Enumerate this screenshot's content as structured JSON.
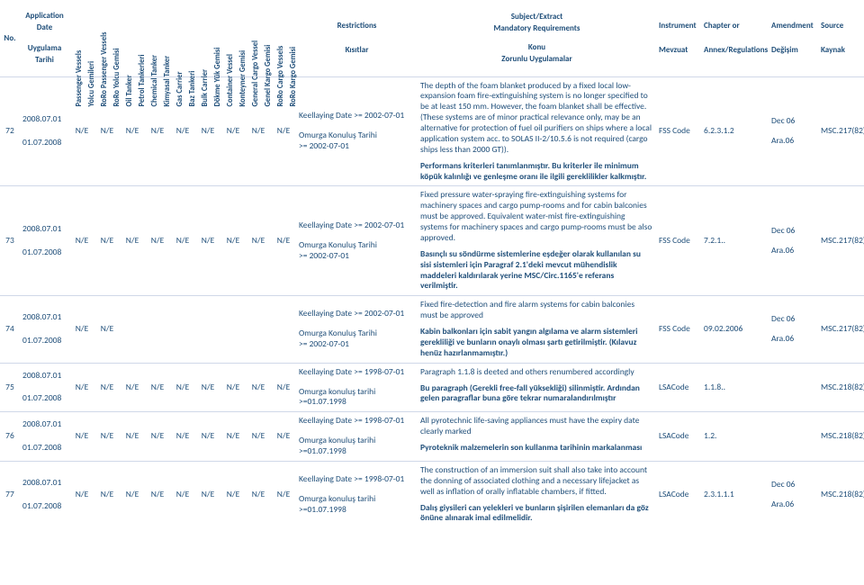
{
  "bg": "#ffffff",
  "txt": "#1f4e79",
  "rowline": "#d0d8e8",
  "hdr": {
    "no": "No.",
    "appdate": [
      "Application",
      "Date",
      "Uygulama",
      "Tarihi"
    ],
    "vessels": [
      "Passenger Vessels",
      "Yolcu Gemileri",
      "RoRo Passenger Vessels",
      "RoRo Yolcu Gemisi",
      "Oil Tanker",
      "Petrol Tankerleri",
      "Chemical Tanker",
      "Kimyasal Tanker",
      "Gas Carrier",
      "Baz Tankeri",
      "Bulk Carrier",
      "Dökme Yük Gemisi",
      "Container Vessel",
      "Konteyner Gemisi",
      "General Cargo Vessel",
      "Genel Kargo Gemisi",
      "RoRo Cargo Vessels",
      "RoRo Kargo Gemisi"
    ],
    "rest": [
      "Restrictions",
      "Kısıtlar"
    ],
    "subj": [
      "Subject/Extract",
      "Mandatory Requirements",
      "Konu",
      "Zorunlu Uygulamalar"
    ],
    "inst": [
      "Instrument",
      "Mevzuat"
    ],
    "chap": [
      "Chapter or",
      "Annex/Regulations"
    ],
    "amd": [
      "Amendment",
      "Değişim"
    ],
    "src": [
      "Source",
      "Kaynak"
    ]
  },
  "rows": [
    {
      "no": "72",
      "d1": "2008.07.01",
      "d2": "01.07.2008",
      "v": [
        "N/E",
        "N/E",
        "N/E",
        "N/E",
        "N/E",
        "N/E",
        "N/E",
        "N/E",
        "N/E"
      ],
      "r1": "Keellaying Date >= 2002-07-01",
      "r2": "Omurga Konuluş Tarihi\n>= 2002-07-01",
      "s1": "The depth of the foam blanket produced by a fixed local low-expansion foam fire-extinguishing system is no longer specified to be at least 150 mm. However, the foam blanket shall be effective. (These systems are of minor practical relevance only, may be an alternative for protection of fuel oil purifiers on ships where a local application system acc. to SOLAS II-2/10.5.6 is not required (cargo ships less than 2000 GT)).",
      "s2": "Performans kriterleri tanımlanmıştır. Bu kriterler ile minimum köpük kalınlığı ve genleşme oranı ile ilgili gereklilikler kalkmıştır.",
      "inst": "FSS Code",
      "chap": "6.2.3.1.2",
      "a1": "Dec 06",
      "a2": "Ara.06",
      "src": "MSC.217(82)"
    },
    {
      "no": "73",
      "d1": "2008.07.01",
      "d2": "01.07.2008",
      "v": [
        "N/E",
        "N/E",
        "N/E",
        "N/E",
        "N/E",
        "N/E",
        "N/E",
        "N/E",
        "N/E"
      ],
      "r1": "Keellaying Date >= 2002-07-01",
      "r2": "Omurga Konuluş Tarihi\n>= 2002-07-01",
      "s1": "Fixed pressure water-spraying fire-extinguishing systems for machinery spaces and cargo pump-rooms and for cabin balconies must be approved. Equivalent water-mist fire-extinguishing systems for machinery spaces and cargo pump-rooms must be also approved.",
      "s2": "Basınçlı su söndürme sistemlerine eşdeğer olarak kullanılan su sisi sistemleri için  Paragraf 2.1'deki mevcut mühendislik maddeleri kaldırılarak yerine MSC/Circ.1165'e referans verilmiştir.",
      "inst": "FSS Code",
      "chap": "7.2.1..",
      "a1": "Dec 06",
      "a2": "Ara.06",
      "src": "MSC.217(82)"
    },
    {
      "no": "74",
      "d1": "2008.07.01",
      "d2": "01.07.2008",
      "v": [
        "N/E",
        "N/E",
        "",
        "",
        "",
        "",
        "",
        "",
        ""
      ],
      "r1": "Keellaying Date >= 2002-07-01",
      "r2": "Omurga Konuluş Tarihi\n>= 2002-07-01",
      "s1": "Fixed fire-detection and fire alarm systems for cabin balconies must be approved",
      "s2": "Kabin balkonları için sabit yangın algılama ve alarm sistemleri gerekliliği ve bunların onaylı olması şartı getirilmiştir. (Kılavuz henüz hazırlanmamıştır.)",
      "inst": "FSS Code",
      "chap": "09.02.2006",
      "a1": "Dec 06",
      "a2": "Ara.06",
      "src": "MSC.217(82)"
    },
    {
      "no": "75",
      "d1": "2008.07.01",
      "d2": "01.07.2008",
      "v": [
        "N/E",
        "N/E",
        "N/E",
        "N/E",
        "N/E",
        "N/E",
        "N/E",
        "N/E",
        "N/E"
      ],
      "r1": "Keellaying Date >= 1998-07-01",
      "r2": "Omurga konuluş tarihi >=01.07.1998",
      "s1": "Paragraph 1.1.8 is deeted and others renumbered accordingly",
      "s2": "Bu paragraph (Gerekli free-fall yüksekliği) silinmiştir. Ardından gelen paragraflar buna göre tekrar numaralandırılmıştır",
      "inst": "LSACode",
      "chap": "1.1.8..",
      "a1": "",
      "a2": "",
      "src": "MSC.218(82)"
    },
    {
      "no": "76",
      "d1": "2008.07.01",
      "d2": "01.07.2008",
      "v": [
        "N/E",
        "N/E",
        "N/E",
        "N/E",
        "N/E",
        "N/E",
        "N/E",
        "N/E",
        "N/E"
      ],
      "r1": "Keellaying Date >= 1998-07-01",
      "r2": "Omurga konuluş tarihi >=01.07.1998",
      "s1": "All pyrotechnic life-saving appliances must have the expiry date clearly marked",
      "s2": "Pyroteknik malzemelerin son kullanma tarihinin markalanması",
      "inst": "LSACode",
      "chap": "1.2.",
      "a1": "",
      "a2": "",
      "src": "MSC.218(82)"
    },
    {
      "no": "77",
      "d1": "2008.07.01",
      "d2": "01.07.2008",
      "v": [
        "N/E",
        "N/E",
        "N/E",
        "N/E",
        "N/E",
        "N/E",
        "N/E",
        "N/E",
        "N/E"
      ],
      "r1": "Keellaying Date >= 1998-07-01",
      "r2": "Omurga konuluş tarihi >=01.07.1998",
      "s1": "The construction of an immersion suit shall also take into account the donning of associated clothing and a necessary lifejacket as well as inflation of orally inflatable chambers, if fitted.",
      "s2": "Dalış giysileri can yelekleri ve bunların şişirilen elemanları da göz önüne alınarak imal edilmelidir.",
      "inst": "LSACode",
      "chap": "2.3.1.1.1",
      "a1": "Dec 06",
      "a2": "Ara.06",
      "src": "MSC.218(82)"
    }
  ]
}
